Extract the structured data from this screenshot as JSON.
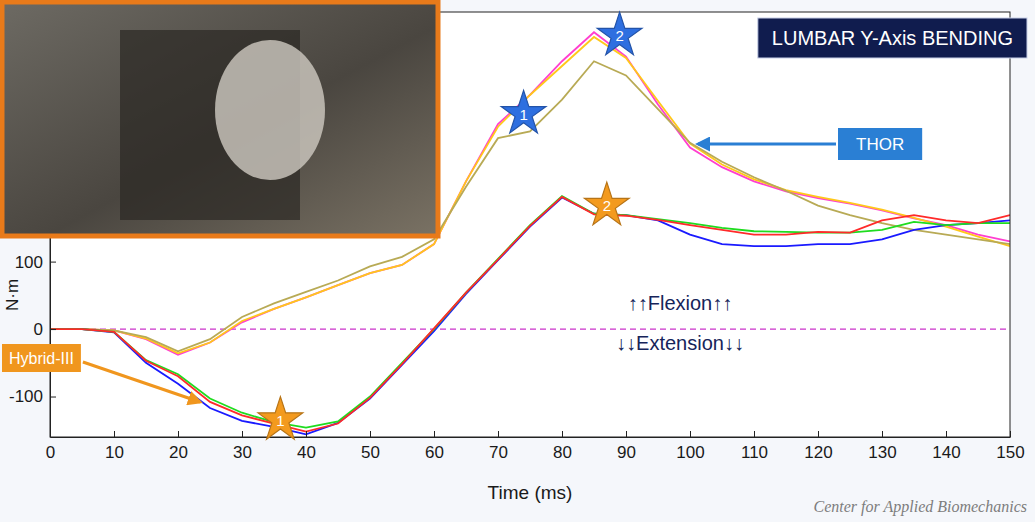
{
  "chart_data": {
    "type": "line",
    "title": "LUMBAR Y-Axis BENDING",
    "x_label": "Time (ms)",
    "y_label": "N·m",
    "x": [
      0,
      5,
      10,
      15,
      20,
      25,
      30,
      35,
      40,
      45,
      50,
      55,
      60,
      65,
      70,
      75,
      80,
      85,
      90,
      95,
      100,
      105,
      110,
      115,
      120,
      125,
      130,
      135,
      140,
      145,
      150
    ],
    "series": [
      {
        "color": "#ff3fd0",
        "values": [
          0,
          0,
          -2,
          -15,
          -38,
          -20,
          10,
          30,
          47,
          65,
          83,
          95,
          126,
          219,
          304,
          347,
          397,
          440,
          404,
          333,
          269,
          240,
          219,
          204,
          194,
          186,
          176,
          164,
          154,
          140,
          130
        ]
      },
      {
        "color": "#ffc81a",
        "values": [
          0,
          0,
          -2,
          -14,
          -36,
          -20,
          12,
          30,
          47,
          65,
          83,
          95,
          126,
          219,
          300,
          347,
          390,
          433,
          402,
          338,
          275,
          244,
          222,
          206,
          196,
          187,
          177,
          165,
          152,
          137,
          123
        ]
      },
      {
        "color": "#b8aa55",
        "values": [
          0,
          0,
          -2,
          -12,
          -33,
          -15,
          18,
          38,
          55,
          72,
          93,
          107,
          133,
          211,
          283,
          293,
          340,
          397,
          376,
          326,
          276,
          248,
          225,
          205,
          183,
          169,
          157,
          147,
          140,
          133,
          126
        ]
      },
      {
        "color": "#1a1aff",
        "values": [
          0,
          0,
          -5,
          -50,
          -81,
          -117,
          -136,
          -145,
          -156,
          -139,
          -103,
          -53,
          -3,
          52,
          102,
          152,
          195,
          171,
          169,
          161,
          140,
          126,
          123,
          123,
          126,
          126,
          133,
          147,
          154,
          157,
          161
        ]
      },
      {
        "color": "#1fdc1f",
        "values": [
          0,
          0,
          -4,
          -46,
          -67,
          -103,
          -124,
          -138,
          -146,
          -137,
          -100,
          -50,
          0,
          54,
          104,
          154,
          197,
          171,
          169,
          163,
          157,
          150,
          145,
          144,
          143,
          143,
          147,
          159,
          154,
          157,
          157
        ]
      },
      {
        "color": "#ff2a2a",
        "values": [
          0,
          0,
          -4,
          -47,
          -70,
          -108,
          -128,
          -140,
          -152,
          -140,
          -102,
          -52,
          1,
          54,
          103,
          153,
          196,
          170,
          168,
          162,
          154,
          147,
          140,
          140,
          144,
          143,
          161,
          169,
          161,
          157,
          169
        ]
      }
    ],
    "xlim": [
      0,
      150
    ],
    "ylim": [
      -160,
      470
    ],
    "xticks": [
      0,
      10,
      20,
      30,
      40,
      50,
      60,
      70,
      80,
      90,
      100,
      110,
      120,
      130,
      140,
      150
    ],
    "yticks": [
      -100,
      0,
      100
    ],
    "grid": false,
    "reference_line": {
      "y": 0,
      "color": "#cc33cc",
      "line_style": "dashed"
    },
    "marker": "star",
    "callouts": [
      {
        "label": "1",
        "x": 74,
        "y": 319,
        "color": "#2e6fe0"
      },
      {
        "label": "2",
        "x": 89,
        "y": 435,
        "color": "#2e6fe0"
      },
      {
        "label": "1",
        "x": 36,
        "y": -135,
        "color": "#f39a1e"
      },
      {
        "label": "2",
        "x": 87,
        "y": 183,
        "color": "#f39a1e"
      }
    ],
    "annotations": [
      {
        "text": "THOR"
      },
      {
        "text": "Hybrid-III"
      },
      {
        "text": "↑↑Flexion↑↑"
      },
      {
        "text": "↓↓Extension↓↓"
      },
      {
        "text": "Center for Applied Biomechanics"
      }
    ]
  }
}
